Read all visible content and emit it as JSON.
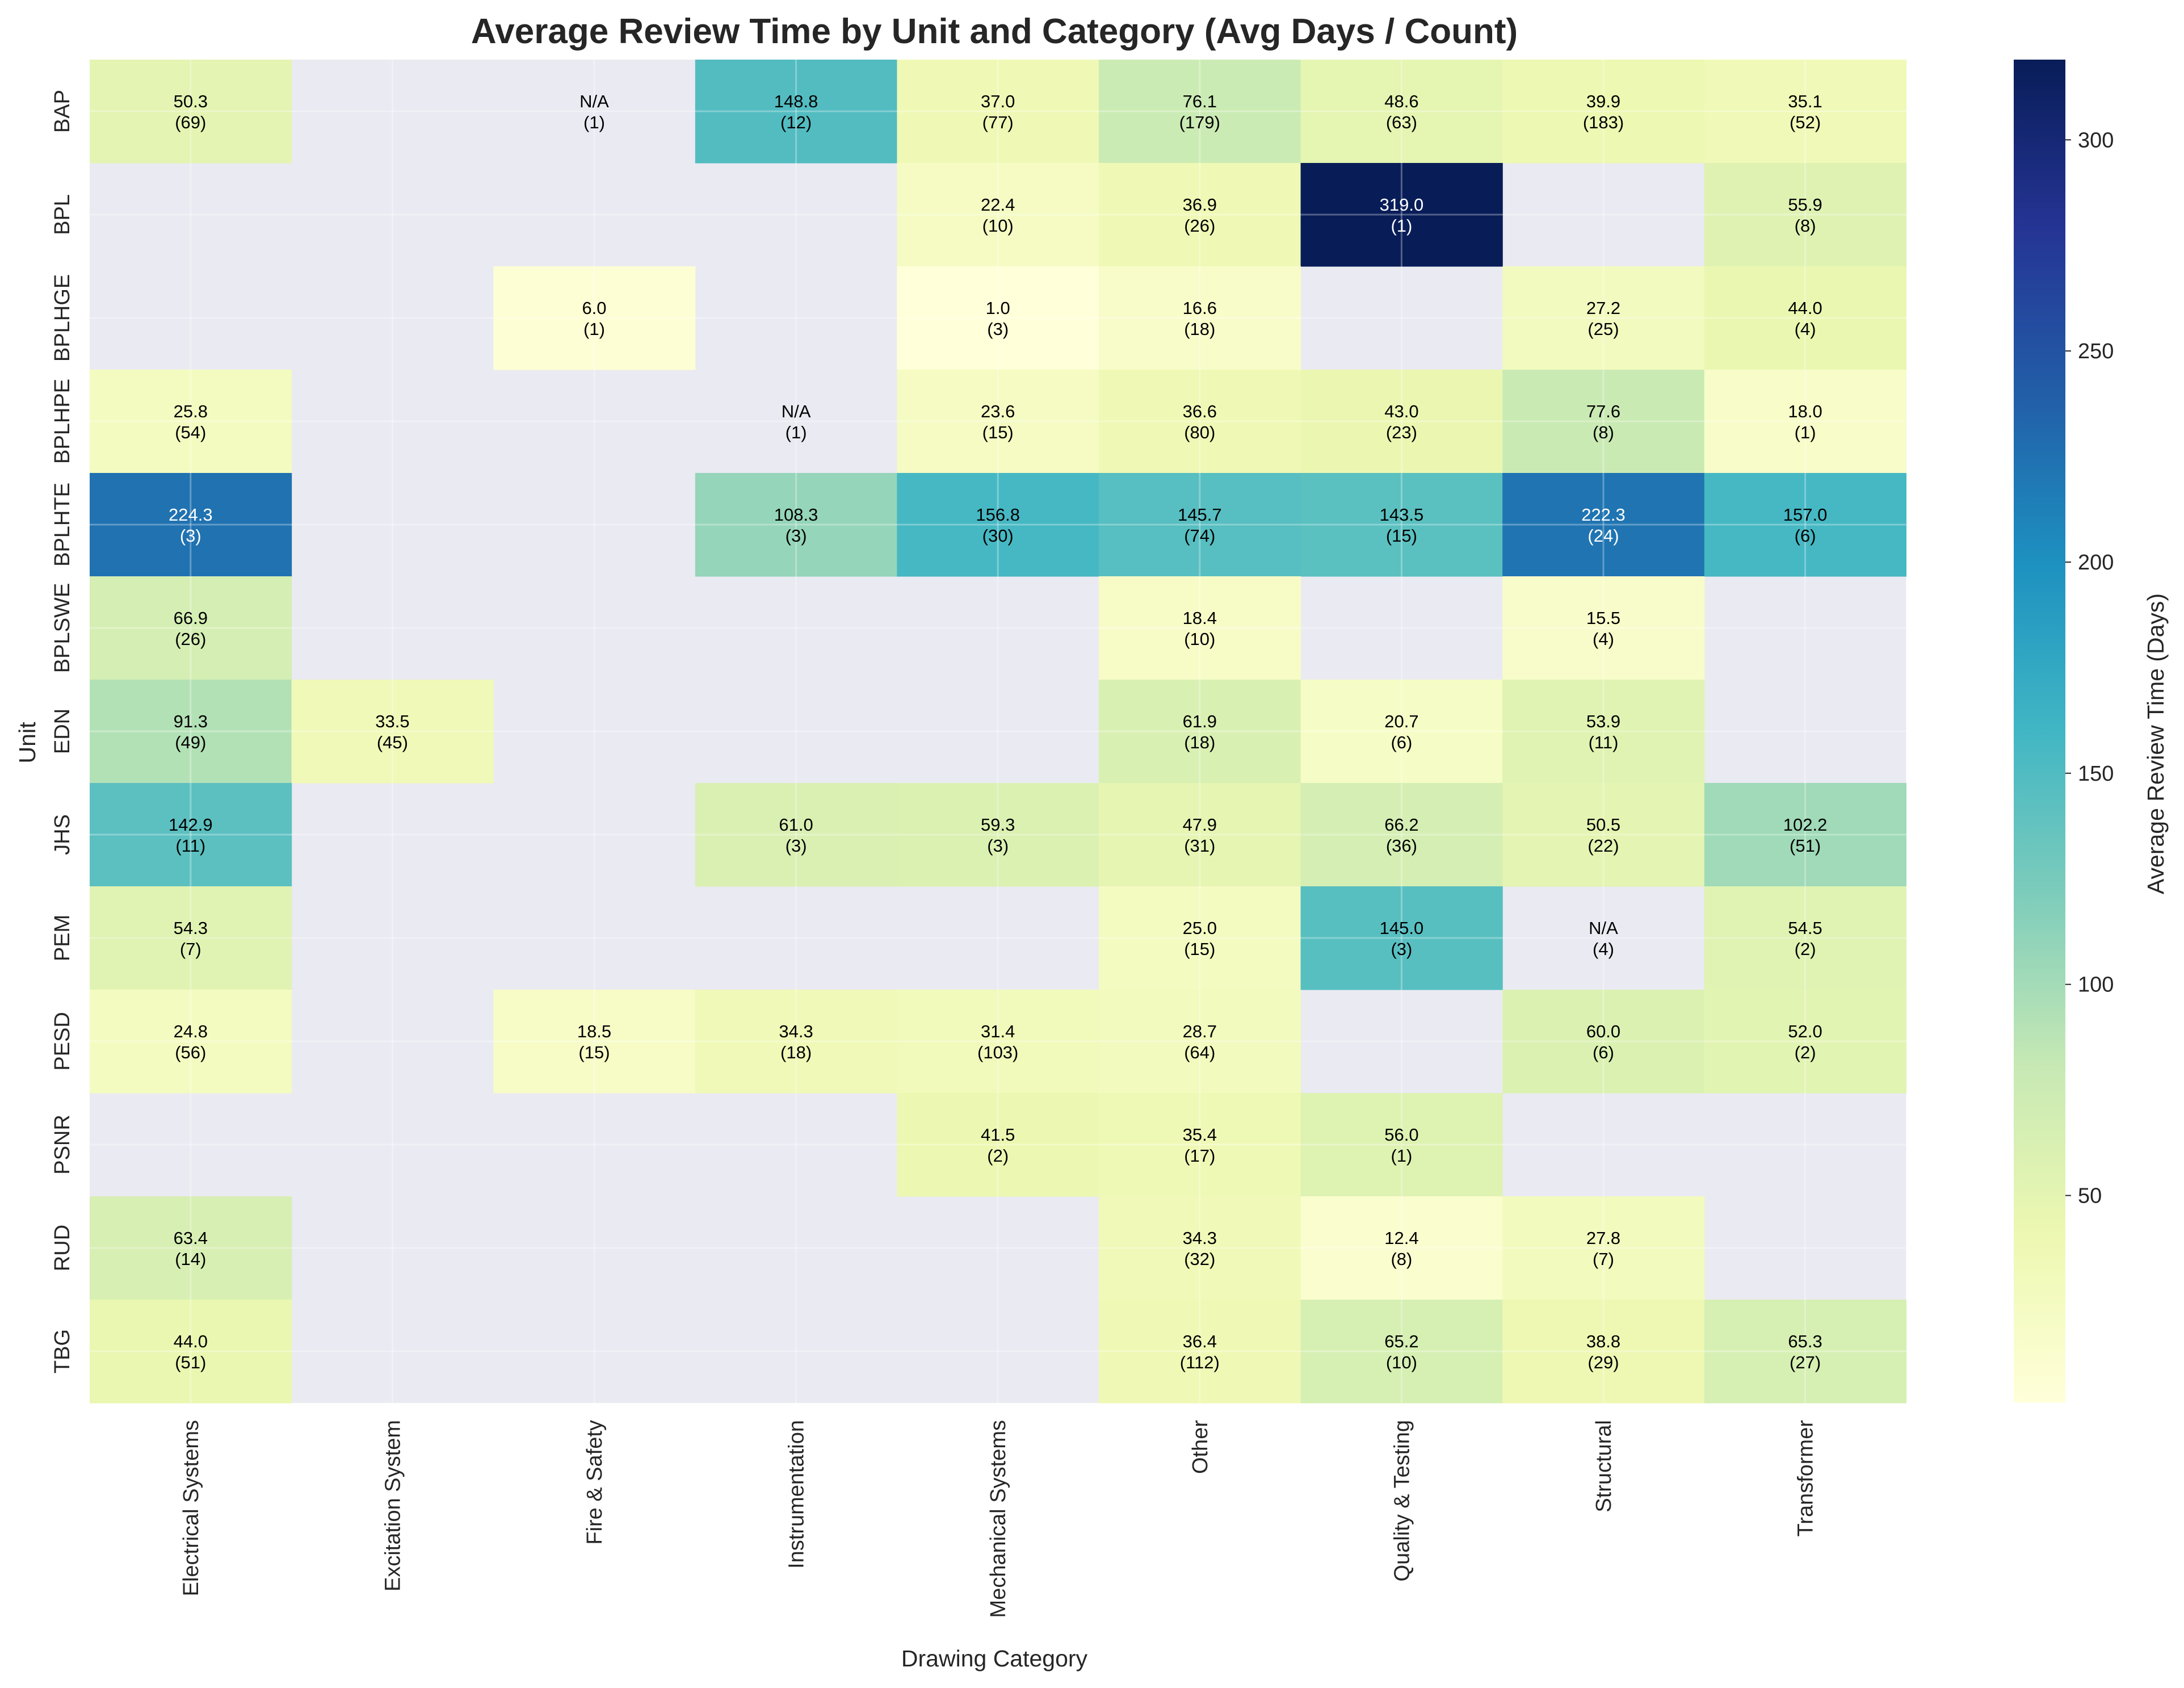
{
  "chart_data": {
    "type": "heatmap",
    "title": "Average Review Time by Unit and Category (Avg Days / Count)",
    "xlabel": "Drawing Category",
    "ylabel": "Unit",
    "colorbar_label": "Average Review Time (Days)",
    "colorbar_range": [
      1,
      319
    ],
    "colorbar_ticks": [
      50,
      100,
      150,
      200,
      250,
      300
    ],
    "colormap": "YlGnBu",
    "missing_color": "#eaeaf2",
    "grid": true,
    "categories": [
      "Electrical Systems",
      "Excitation System",
      "Fire & Safety",
      "Instrumentation",
      "Mechanical Systems",
      "Other",
      "Quality & Testing",
      "Structural",
      "Transformer"
    ],
    "units": [
      "BAP",
      "BPL",
      "BPLHGE",
      "BPLHPE",
      "BPLHTE",
      "BPLSWE",
      "EDN",
      "JHS",
      "PEM",
      "PESD",
      "PSNR",
      "RUD",
      "TBG"
    ],
    "cells": [
      [
        {
          "avg": 50.3,
          "count": 69,
          "label": "50.3"
        },
        null,
        {
          "avg": null,
          "count": 1,
          "label": "N/A"
        },
        {
          "avg": 148.8,
          "count": 12,
          "label": "148.8"
        },
        {
          "avg": 37.0,
          "count": 77,
          "label": "37.0"
        },
        {
          "avg": 76.1,
          "count": 179,
          "label": "76.1"
        },
        {
          "avg": 48.6,
          "count": 63,
          "label": "48.6"
        },
        {
          "avg": 39.9,
          "count": 183,
          "label": "39.9"
        },
        {
          "avg": 35.1,
          "count": 52,
          "label": "35.1"
        }
      ],
      [
        null,
        null,
        null,
        null,
        {
          "avg": 22.4,
          "count": 10,
          "label": "22.4"
        },
        {
          "avg": 36.9,
          "count": 26,
          "label": "36.9"
        },
        {
          "avg": 319.0,
          "count": 1,
          "label": "319.0"
        },
        null,
        {
          "avg": 55.9,
          "count": 8,
          "label": "55.9"
        }
      ],
      [
        null,
        null,
        {
          "avg": 6.0,
          "count": 1,
          "label": "6.0"
        },
        null,
        {
          "avg": 1.0,
          "count": 3,
          "label": "1.0"
        },
        {
          "avg": 16.6,
          "count": 18,
          "label": "16.6"
        },
        null,
        {
          "avg": 27.2,
          "count": 25,
          "label": "27.2"
        },
        {
          "avg": 44.0,
          "count": 4,
          "label": "44.0"
        }
      ],
      [
        {
          "avg": 25.8,
          "count": 54,
          "label": "25.8"
        },
        null,
        null,
        {
          "avg": null,
          "count": 1,
          "label": "N/A"
        },
        {
          "avg": 23.6,
          "count": 15,
          "label": "23.6"
        },
        {
          "avg": 36.6,
          "count": 80,
          "label": "36.6"
        },
        {
          "avg": 43.0,
          "count": 23,
          "label": "43.0"
        },
        {
          "avg": 77.6,
          "count": 8,
          "label": "77.6"
        },
        {
          "avg": 18.0,
          "count": 1,
          "label": "18.0"
        }
      ],
      [
        {
          "avg": 224.3,
          "count": 3,
          "label": "224.3"
        },
        null,
        null,
        {
          "avg": 108.3,
          "count": 3,
          "label": "108.3"
        },
        {
          "avg": 156.8,
          "count": 30,
          "label": "156.8"
        },
        {
          "avg": 145.7,
          "count": 74,
          "label": "145.7"
        },
        {
          "avg": 143.5,
          "count": 15,
          "label": "143.5"
        },
        {
          "avg": 222.3,
          "count": 24,
          "label": "222.3"
        },
        {
          "avg": 157.0,
          "count": 6,
          "label": "157.0"
        }
      ],
      [
        {
          "avg": 66.9,
          "count": 26,
          "label": "66.9"
        },
        null,
        null,
        null,
        null,
        {
          "avg": 18.4,
          "count": 10,
          "label": "18.4"
        },
        null,
        {
          "avg": 15.5,
          "count": 4,
          "label": "15.5"
        },
        null
      ],
      [
        {
          "avg": 91.3,
          "count": 49,
          "label": "91.3"
        },
        {
          "avg": 33.5,
          "count": 45,
          "label": "33.5"
        },
        null,
        null,
        null,
        {
          "avg": 61.9,
          "count": 18,
          "label": "61.9"
        },
        {
          "avg": 20.7,
          "count": 6,
          "label": "20.7"
        },
        {
          "avg": 53.9,
          "count": 11,
          "label": "53.9"
        },
        null
      ],
      [
        {
          "avg": 142.9,
          "count": 11,
          "label": "142.9"
        },
        null,
        null,
        {
          "avg": 61.0,
          "count": 3,
          "label": "61.0"
        },
        {
          "avg": 59.3,
          "count": 3,
          "label": "59.3"
        },
        {
          "avg": 47.9,
          "count": 31,
          "label": "47.9"
        },
        {
          "avg": 66.2,
          "count": 36,
          "label": "66.2"
        },
        {
          "avg": 50.5,
          "count": 22,
          "label": "50.5"
        },
        {
          "avg": 102.2,
          "count": 51,
          "label": "102.2"
        }
      ],
      [
        {
          "avg": 54.3,
          "count": 7,
          "label": "54.3"
        },
        null,
        null,
        null,
        null,
        {
          "avg": 25.0,
          "count": 15,
          "label": "25.0"
        },
        {
          "avg": 145.0,
          "count": 3,
          "label": "145.0"
        },
        {
          "avg": null,
          "count": 4,
          "label": "N/A"
        },
        {
          "avg": 54.5,
          "count": 2,
          "label": "54.5"
        }
      ],
      [
        {
          "avg": 24.8,
          "count": 56,
          "label": "24.8"
        },
        null,
        {
          "avg": 18.5,
          "count": 15,
          "label": "18.5"
        },
        {
          "avg": 34.3,
          "count": 18,
          "label": "34.3"
        },
        {
          "avg": 31.4,
          "count": 103,
          "label": "31.4"
        },
        {
          "avg": 28.7,
          "count": 64,
          "label": "28.7"
        },
        null,
        {
          "avg": 60.0,
          "count": 6,
          "label": "60.0"
        },
        {
          "avg": 52.0,
          "count": 2,
          "label": "52.0"
        }
      ],
      [
        null,
        null,
        null,
        null,
        {
          "avg": 41.5,
          "count": 2,
          "label": "41.5"
        },
        {
          "avg": 35.4,
          "count": 17,
          "label": "35.4"
        },
        {
          "avg": 56.0,
          "count": 1,
          "label": "56.0"
        },
        null,
        null
      ],
      [
        {
          "avg": 63.4,
          "count": 14,
          "label": "63.4"
        },
        null,
        null,
        null,
        null,
        {
          "avg": 34.3,
          "count": 32,
          "label": "34.3"
        },
        {
          "avg": 12.4,
          "count": 8,
          "label": "12.4"
        },
        {
          "avg": 27.8,
          "count": 7,
          "label": "27.8"
        },
        null
      ],
      [
        {
          "avg": 44.0,
          "count": 51,
          "label": "44.0"
        },
        null,
        null,
        null,
        null,
        {
          "avg": 36.4,
          "count": 112,
          "label": "36.4"
        },
        {
          "avg": 65.2,
          "count": 10,
          "label": "65.2"
        },
        {
          "avg": 38.8,
          "count": 29,
          "label": "38.8"
        },
        {
          "avg": 65.3,
          "count": 27,
          "label": "65.3"
        }
      ]
    ]
  }
}
